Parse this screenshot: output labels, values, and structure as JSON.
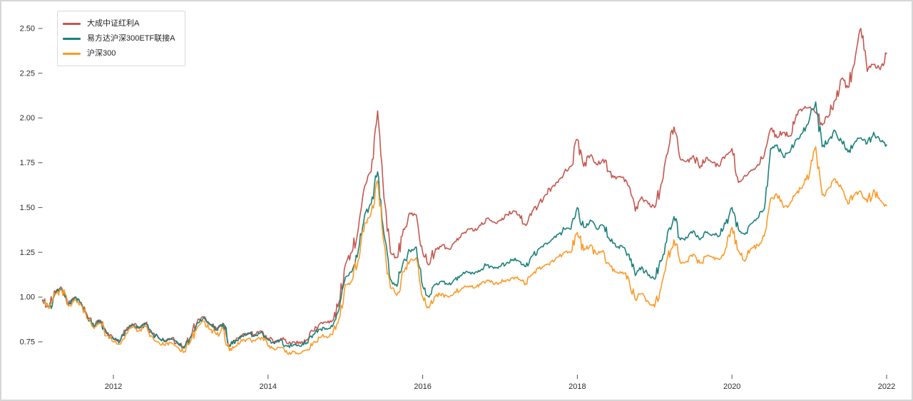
{
  "figure": {
    "background": "#ffffff",
    "border_color": "#d6d6d6"
  },
  "legend": {
    "items": [
      {
        "label": "大成中证红利A",
        "color": "#c5574f"
      },
      {
        "label": "易方达沪深300ETF联接A",
        "color": "#1a817b"
      },
      {
        "label": "沪深300",
        "color": "#fd9a28"
      }
    ]
  },
  "axes": {
    "y_ticks": [
      "0.75",
      "1.00",
      "1.25",
      "1.50",
      "1.75",
      "2.00",
      "2.25",
      "2.50"
    ],
    "x_ticks": [
      "2012",
      "2014",
      "2016",
      "2018",
      "2020",
      "2022"
    ],
    "tick_label_color": "#2b2b2b",
    "tick_mark_color": "#555555"
  },
  "chart_data": {
    "type": "line",
    "title": "",
    "xlabel": "",
    "ylabel": "",
    "grid": false,
    "legend_position": "upper-left",
    "x_unit": "decimal_year",
    "x_start": 2011.083333,
    "x_step": 0.083333,
    "x_range": [
      2011.08,
      2022.0
    ],
    "ylim_visible": [
      0.62,
      2.62
    ],
    "y_tick_values": [
      0.75,
      1.0,
      1.25,
      1.5,
      1.75,
      2.0,
      2.25,
      2.5
    ],
    "x_tick_years": [
      2012,
      2014,
      2016,
      2018,
      2020,
      2022
    ],
    "sampling": "monthly 2011-02 through 2022-01, 132 points per series",
    "series": [
      {
        "name": "大成中证红利A",
        "color": "#c5574f",
        "values": [
          0.985,
          0.945,
          1.03,
          1.05,
          0.96,
          1.0,
          0.97,
          0.89,
          0.84,
          0.87,
          0.8,
          0.77,
          0.755,
          0.82,
          0.85,
          0.83,
          0.855,
          0.8,
          0.775,
          0.755,
          0.77,
          0.745,
          0.72,
          0.78,
          0.86,
          0.89,
          0.85,
          0.82,
          0.855,
          0.73,
          0.76,
          0.79,
          0.8,
          0.79,
          0.81,
          0.77,
          0.75,
          0.77,
          0.74,
          0.75,
          0.74,
          0.76,
          0.81,
          0.85,
          0.86,
          0.87,
          0.97,
          1.18,
          1.25,
          1.38,
          1.62,
          1.7,
          2.04,
          1.55,
          1.25,
          1.22,
          1.38,
          1.47,
          1.46,
          1.25,
          1.18,
          1.27,
          1.29,
          1.27,
          1.31,
          1.35,
          1.38,
          1.37,
          1.4,
          1.44,
          1.42,
          1.43,
          1.46,
          1.48,
          1.46,
          1.4,
          1.48,
          1.52,
          1.57,
          1.61,
          1.64,
          1.7,
          1.73,
          1.88,
          1.73,
          1.79,
          1.74,
          1.77,
          1.7,
          1.66,
          1.67,
          1.62,
          1.48,
          1.56,
          1.52,
          1.5,
          1.63,
          1.8,
          1.95,
          1.77,
          1.76,
          1.79,
          1.72,
          1.78,
          1.75,
          1.73,
          1.79,
          1.83,
          1.64,
          1.68,
          1.71,
          1.74,
          1.79,
          1.94,
          1.89,
          1.92,
          1.9,
          2.02,
          2.05,
          2.06,
          2.03,
          1.96,
          2.01,
          2.1,
          2.22,
          2.17,
          2.3,
          2.5,
          2.26,
          2.3,
          2.27,
          2.36
        ]
      },
      {
        "name": "易方达沪深300ETF联接A",
        "color": "#1a817b",
        "values": [
          0.98,
          0.94,
          1.025,
          1.045,
          0.955,
          0.995,
          0.965,
          0.885,
          0.835,
          0.865,
          0.795,
          0.765,
          0.75,
          0.815,
          0.845,
          0.825,
          0.85,
          0.795,
          0.77,
          0.75,
          0.765,
          0.74,
          0.715,
          0.775,
          0.855,
          0.885,
          0.845,
          0.815,
          0.85,
          0.725,
          0.755,
          0.785,
          0.795,
          0.785,
          0.805,
          0.76,
          0.74,
          0.76,
          0.725,
          0.735,
          0.725,
          0.745,
          0.79,
          0.82,
          0.825,
          0.835,
          0.93,
          1.11,
          1.14,
          1.26,
          1.46,
          1.52,
          1.7,
          1.35,
          1.1,
          1.06,
          1.2,
          1.26,
          1.28,
          1.06,
          1.0,
          1.07,
          1.09,
          1.07,
          1.1,
          1.12,
          1.14,
          1.13,
          1.15,
          1.18,
          1.16,
          1.17,
          1.19,
          1.21,
          1.2,
          1.17,
          1.23,
          1.27,
          1.3,
          1.32,
          1.35,
          1.38,
          1.38,
          1.5,
          1.39,
          1.43,
          1.38,
          1.4,
          1.32,
          1.28,
          1.28,
          1.24,
          1.12,
          1.17,
          1.12,
          1.1,
          1.2,
          1.36,
          1.45,
          1.32,
          1.33,
          1.37,
          1.32,
          1.36,
          1.35,
          1.34,
          1.41,
          1.5,
          1.38,
          1.35,
          1.41,
          1.44,
          1.49,
          1.83,
          1.85,
          1.78,
          1.81,
          1.88,
          1.92,
          1.99,
          2.09,
          1.84,
          1.88,
          1.93,
          1.87,
          1.81,
          1.86,
          1.89,
          1.86,
          1.92,
          1.87,
          1.85
        ]
      },
      {
        "name": "沪深300",
        "color": "#fd9a28",
        "values": [
          0.975,
          0.935,
          1.015,
          1.04,
          0.95,
          0.985,
          0.955,
          0.875,
          0.825,
          0.855,
          0.785,
          0.75,
          0.735,
          0.8,
          0.83,
          0.81,
          0.835,
          0.78,
          0.75,
          0.73,
          0.745,
          0.72,
          0.695,
          0.755,
          0.83,
          0.865,
          0.82,
          0.79,
          0.825,
          0.7,
          0.725,
          0.755,
          0.77,
          0.755,
          0.775,
          0.725,
          0.705,
          0.72,
          0.685,
          0.695,
          0.685,
          0.705,
          0.745,
          0.775,
          0.78,
          0.79,
          0.88,
          1.07,
          1.09,
          1.21,
          1.41,
          1.47,
          1.65,
          1.3,
          1.05,
          1.01,
          1.14,
          1.2,
          1.22,
          1.0,
          0.94,
          1.005,
          1.02,
          1.0,
          1.03,
          1.045,
          1.06,
          1.05,
          1.07,
          1.095,
          1.07,
          1.08,
          1.095,
          1.11,
          1.1,
          1.075,
          1.125,
          1.16,
          1.18,
          1.2,
          1.225,
          1.25,
          1.25,
          1.36,
          1.26,
          1.29,
          1.24,
          1.26,
          1.18,
          1.14,
          1.14,
          1.1,
          0.985,
          1.02,
          0.975,
          0.945,
          1.05,
          1.22,
          1.32,
          1.19,
          1.2,
          1.24,
          1.19,
          1.23,
          1.22,
          1.21,
          1.27,
          1.39,
          1.26,
          1.2,
          1.27,
          1.29,
          1.34,
          1.55,
          1.57,
          1.5,
          1.52,
          1.58,
          1.62,
          1.68,
          1.84,
          1.57,
          1.61,
          1.66,
          1.61,
          1.52,
          1.57,
          1.59,
          1.53,
          1.6,
          1.54,
          1.51
        ]
      }
    ]
  }
}
